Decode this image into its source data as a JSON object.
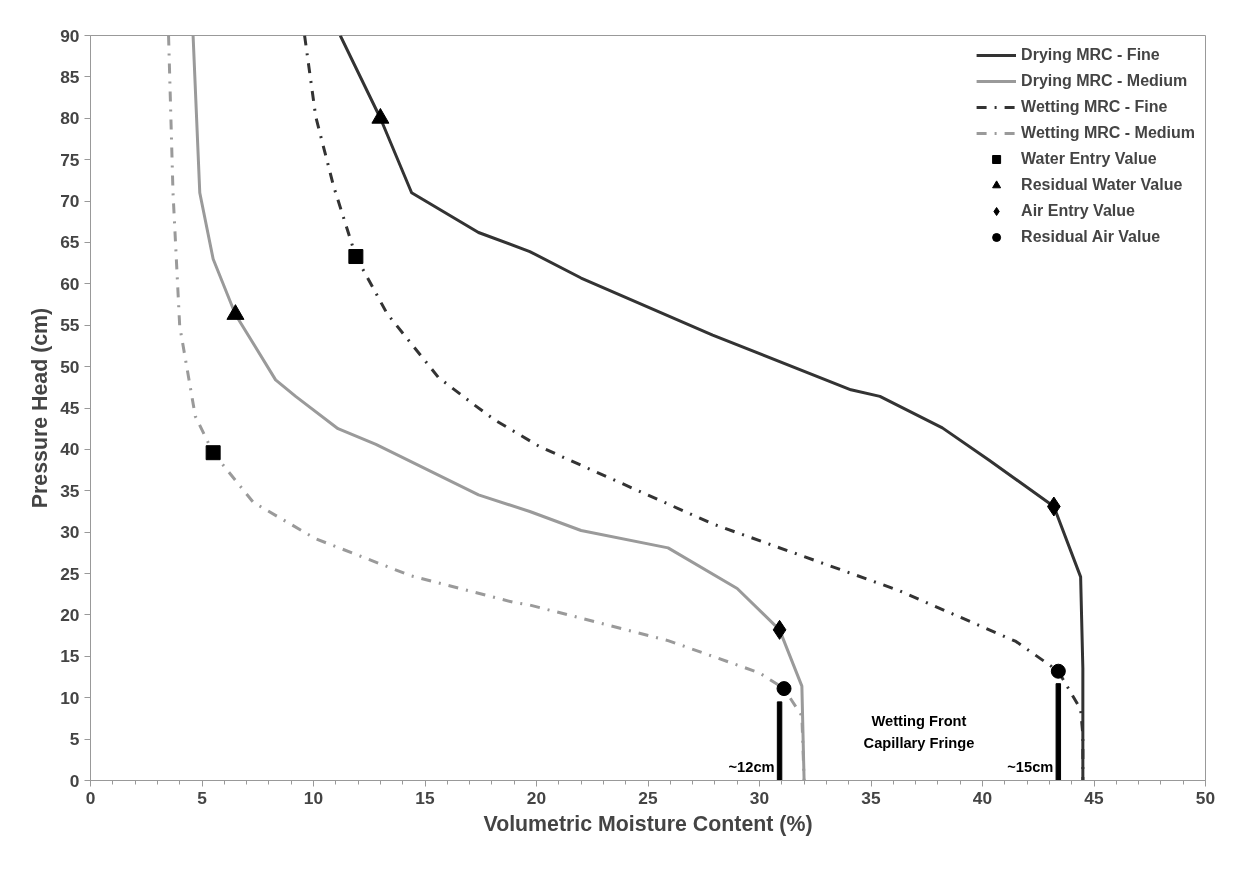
{
  "chart_data": {
    "type": "line",
    "xlabel": "Volumetric Moisture Content (%)",
    "ylabel": "Pressure Head (cm)",
    "xlim": [
      0,
      50
    ],
    "xticks": [
      0,
      5,
      10,
      15,
      20,
      25,
      30,
      35,
      40,
      45,
      50
    ],
    "ylim": [
      0,
      90
    ],
    "yticks": [
      0,
      5,
      10,
      15,
      20,
      25,
      30,
      35,
      40,
      45,
      50,
      55,
      60,
      65,
      70,
      75,
      80,
      85,
      90
    ],
    "grid": false,
    "legend": "top right",
    "series": [
      {
        "name": "Drying MRC - Fine",
        "color": "#333333",
        "line_style": "solid",
        "x": [
          11.2,
          13.0,
          14.4,
          17.4,
          19.7,
          22.0,
          27.9,
          34.1,
          35.4,
          38.2,
          40.3,
          43.2,
          44.4,
          44.5,
          44.5
        ],
        "values": [
          90,
          80.0,
          71.0,
          66.2,
          63.9,
          60.7,
          53.8,
          47.2,
          46.4,
          42.6,
          38.7,
          33.1,
          24.6,
          13.6,
          0
        ]
      },
      {
        "name": "Drying MRC - Medium",
        "color": "#9a9a9a",
        "line_style": "solid",
        "x": [
          4.6,
          4.9,
          5.5,
          6.5,
          8.3,
          9.2,
          11.1,
          12.8,
          17.4,
          19.7,
          22.0,
          25.9,
          29.0,
          30.9,
          31.9,
          32.0
        ],
        "values": [
          90,
          71.0,
          63.0,
          56.3,
          48.4,
          46.4,
          42.5,
          40.6,
          34.5,
          32.5,
          30.2,
          28.1,
          23.2,
          18.2,
          11.4,
          0
        ]
      },
      {
        "name": "Wetting MRC - Fine",
        "color": "#333333",
        "line_style": "dashdot",
        "x": [
          9.6,
          10.1,
          10.9,
          11.9,
          13.3,
          15.6,
          17.1,
          18.1,
          20.1,
          21.4,
          27.9,
          36.2,
          41.5,
          43.4,
          44.4,
          44.5,
          44.5
        ],
        "values": [
          90,
          80.2,
          71.8,
          63.3,
          56.4,
          48.7,
          45.6,
          43.6,
          40.4,
          38.8,
          31.0,
          23.0,
          16.8,
          13.2,
          8.6,
          5.5,
          0
        ]
      },
      {
        "name": "Wetting MRC - Medium",
        "color": "#9a9a9a",
        "line_style": "dashdot",
        "x": [
          3.5,
          3.7,
          4.0,
          4.7,
          5.5,
          7.3,
          10.1,
          14.4,
          19.0,
          19.7,
          25.9,
          30.0,
          31.1,
          31.9,
          32.0
        ],
        "values": [
          90,
          71.0,
          54.9,
          44.0,
          39.6,
          33.6,
          29.2,
          24.7,
          21.5,
          21.2,
          16.9,
          13.0,
          11.1,
          7.8,
          0
        ]
      },
      {
        "name": "Water Entry Value",
        "type": "scatter",
        "marker": "square",
        "color": "#000000",
        "x": [
          11.9,
          5.5
        ],
        "values": [
          63.3,
          39.6
        ]
      },
      {
        "name": "Residual Water Value",
        "type": "scatter",
        "marker": "triangle",
        "color": "#000000",
        "x": [
          13.0,
          6.5
        ],
        "values": [
          80.0,
          56.3
        ]
      },
      {
        "name": "Air Entry Value",
        "type": "scatter",
        "marker": "diamond",
        "color": "#000000",
        "x": [
          43.2,
          30.9
        ],
        "values": [
          33.1,
          18.2
        ]
      },
      {
        "name": "Residual Air Value",
        "type": "scatter",
        "marker": "circle",
        "color": "#000000",
        "x": [
          43.4,
          31.1
        ],
        "values": [
          13.2,
          11.1
        ]
      },
      {
        "type": "bar",
        "color": "#000000",
        "x": [
          30.9,
          43.4
        ],
        "values": [
          9.5,
          11.7
        ]
      }
    ],
    "annotations": [
      "~12cm",
      "~15cm",
      "Wetting Front\nCapillary Fringe"
    ]
  }
}
